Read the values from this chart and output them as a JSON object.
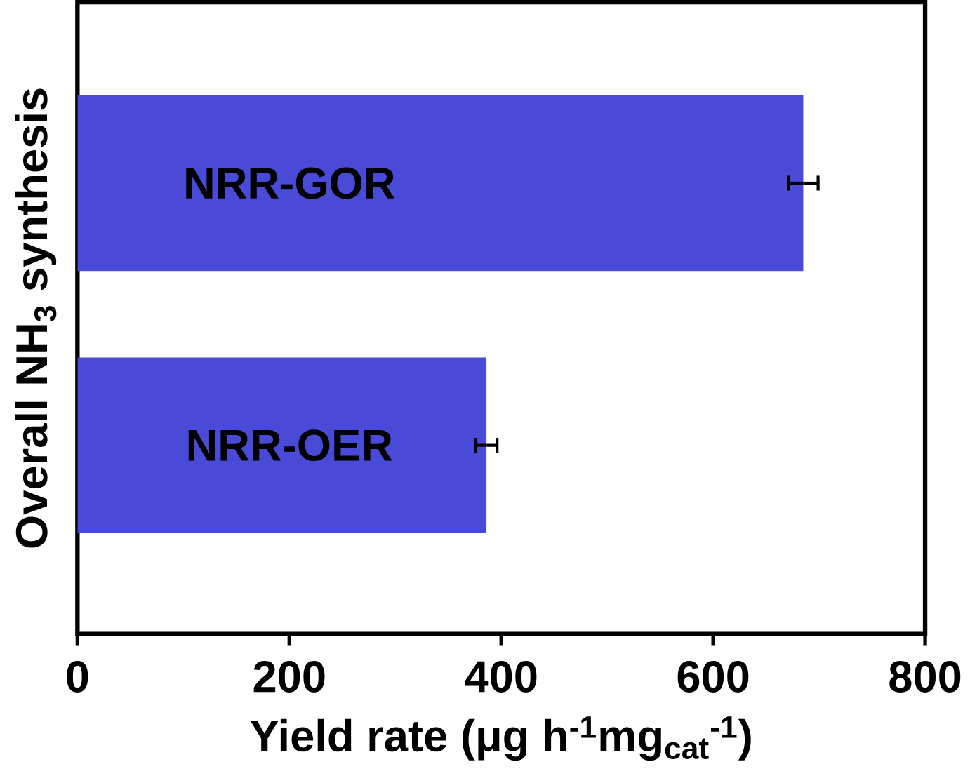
{
  "chart_data": {
    "type": "bar",
    "orientation": "horizontal",
    "categories": [
      "NRR-GOR",
      "NRR-OER"
    ],
    "values": [
      685,
      386
    ],
    "errors": [
      14,
      10
    ],
    "color": "#4a4ad8",
    "xlim": [
      0,
      800
    ],
    "xticks": [
      0,
      200,
      400,
      600,
      800
    ],
    "xlabel": "Yield rate (μg h$^{-1}$mg$_{cat}$$^{-1}$)",
    "ylabel": "Overall NH$_{3}$ synthesis",
    "grid": false
  }
}
